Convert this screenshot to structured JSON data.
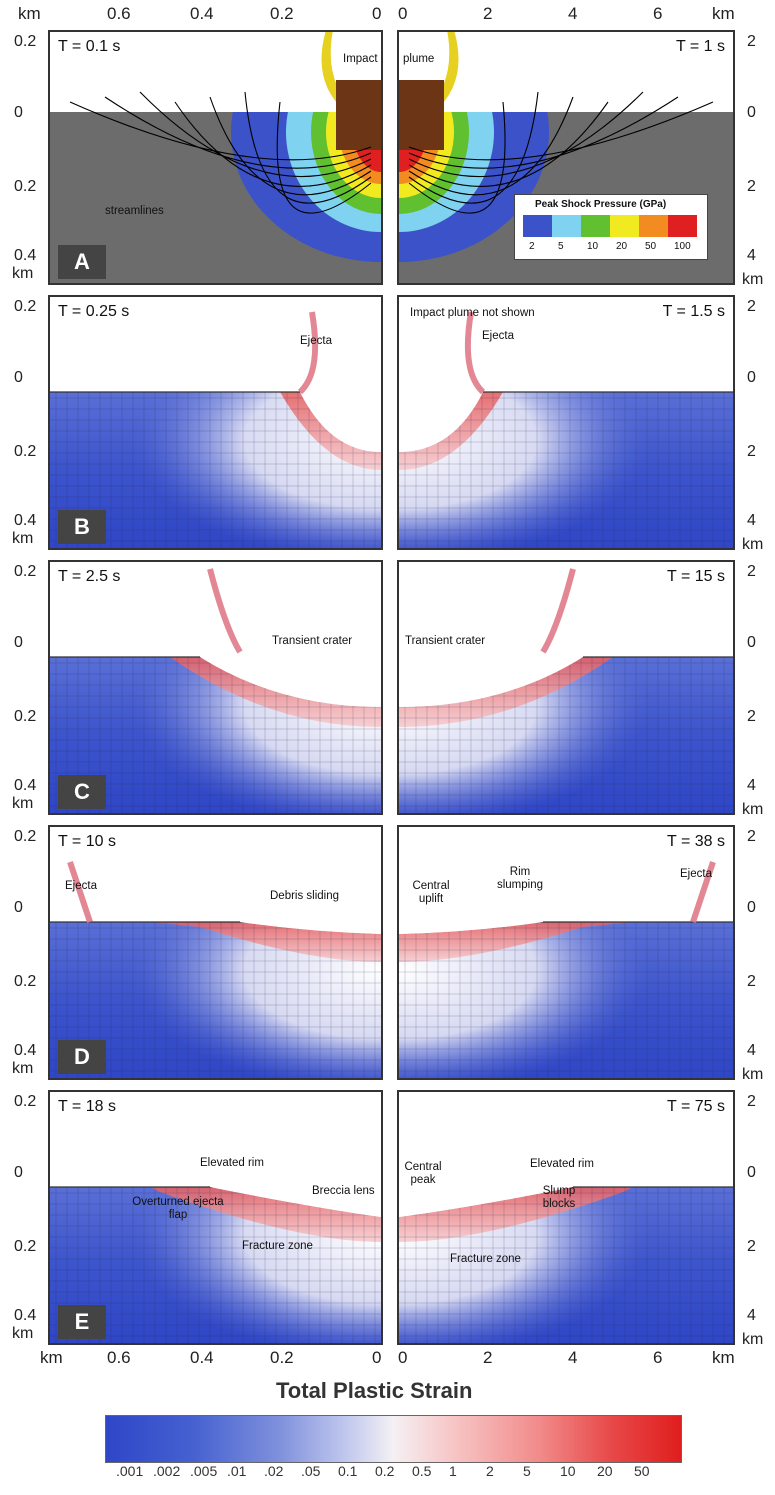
{
  "axes": {
    "top_left_ticks": [
      "km",
      "0.6",
      "0.4",
      "0.2",
      "0"
    ],
    "top_right_ticks": [
      "0",
      "2",
      "4",
      "6",
      "km"
    ],
    "bottom_left_ticks": [
      "km",
      "0.6",
      "0.4",
      "0.2",
      "0"
    ],
    "bottom_right_ticks": [
      "0",
      "2",
      "4",
      "6",
      "km"
    ],
    "left_depth_ticks": [
      "0.2",
      "0",
      "0.2",
      "0.4",
      "km"
    ],
    "right_depth_ticks": [
      "2",
      "0",
      "2",
      "4",
      "km"
    ]
  },
  "panels": [
    {
      "id": "A",
      "time_left": "T = 0.1 s",
      "time_right": "T = 1 s",
      "labels": [
        "Impact",
        "plume",
        "streamlines"
      ],
      "legend": {
        "title": "Peak Shock Pressure (GPa)",
        "values": [
          "2",
          "5",
          "10",
          "20",
          "50",
          "100"
        ],
        "colors": [
          "#3b52c8",
          "#7fd3f0",
          "#60c030",
          "#f2ea20",
          "#f28c20",
          "#e02020"
        ]
      }
    },
    {
      "id": "B",
      "time_left": "T = 0.25 s",
      "time_right": "T = 1.5 s",
      "labels": [
        "Ejecta",
        "Impact plume not shown",
        "Ejecta"
      ]
    },
    {
      "id": "C",
      "time_left": "T = 2.5 s",
      "time_right": "T = 15 s",
      "labels": [
        "Transient crater",
        "Transient crater"
      ]
    },
    {
      "id": "D",
      "time_left": "T = 10 s",
      "time_right": "T = 38 s",
      "labels": [
        "Ejecta",
        "Debris sliding",
        "Central uplift",
        "Rim slumping",
        "Ejecta"
      ]
    },
    {
      "id": "E",
      "time_left": "T = 18 s",
      "time_right": "T = 75 s",
      "labels": [
        "Elevated rim",
        "Breccia lens",
        "Overturned ejecta flap",
        "Fracture zone",
        "Central peak",
        "Elevated rim",
        "Slump blocks",
        "Fracture zone"
      ]
    }
  ],
  "colorbar": {
    "title": "Total Plastic Strain",
    "ticks": [
      ".001",
      ".002",
      ".005",
      ".01",
      ".02",
      ".05",
      "0.1",
      "0.2",
      "0.5",
      "1",
      "2",
      "5",
      "10",
      "20",
      "50"
    ]
  }
}
